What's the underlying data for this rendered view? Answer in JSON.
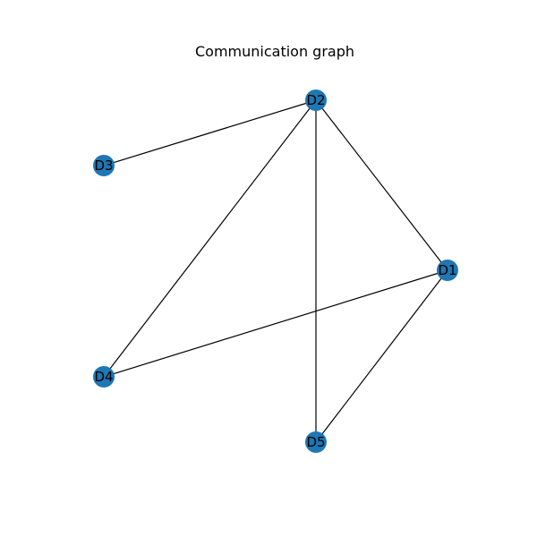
{
  "title": "Communication graph",
  "colors": {
    "node": "#1f77b4",
    "edge": "#000000",
    "background": "#ffffff"
  },
  "nodes": [
    {
      "id": "D1",
      "label": "D1"
    },
    {
      "id": "D2",
      "label": "D2"
    },
    {
      "id": "D3",
      "label": "D3"
    },
    {
      "id": "D4",
      "label": "D4"
    },
    {
      "id": "D5",
      "label": "D5"
    }
  ],
  "edges": [
    {
      "source": "D2",
      "target": "D3"
    },
    {
      "source": "D2",
      "target": "D4"
    },
    {
      "source": "D2",
      "target": "D5"
    },
    {
      "source": "D2",
      "target": "D1"
    },
    {
      "source": "D1",
      "target": "D4"
    },
    {
      "source": "D1",
      "target": "D5"
    }
  ]
}
